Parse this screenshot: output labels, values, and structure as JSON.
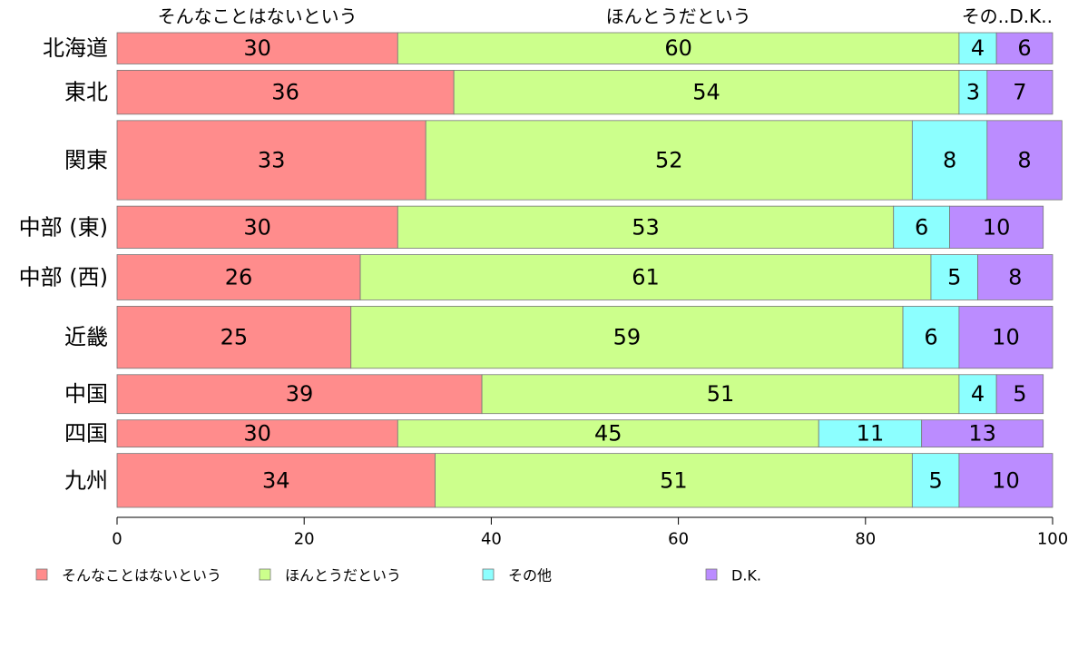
{
  "chart_data": {
    "type": "bar",
    "orientation": "horizontal",
    "stacked": true,
    "percent": true,
    "categories": [
      "北海道",
      "東北",
      "関東",
      "中部 (東)",
      "中部 (西)",
      "近畿",
      "中国",
      "四国",
      "九州"
    ],
    "series": [
      {
        "name": "そんなことはないという",
        "color": "#ff8c8c",
        "values": [
          30,
          36,
          33,
          30,
          26,
          25,
          39,
          30,
          34
        ]
      },
      {
        "name": "ほんとうだという",
        "color": "#ccff8c",
        "values": [
          60,
          54,
          52,
          53,
          61,
          59,
          51,
          45,
          51
        ]
      },
      {
        "name": "その他",
        "color": "#8cffff",
        "values": [
          4,
          3,
          8,
          6,
          5,
          6,
          4,
          11,
          5
        ]
      },
      {
        "name": "D.K.",
        "color": "#bb8cff",
        "values": [
          6,
          7,
          8,
          10,
          8,
          10,
          5,
          13,
          10
        ]
      }
    ],
    "top_labels": [
      "そんなことはないという",
      "ほんとうだという",
      "その..D.K.."
    ],
    "category_weights": [
      0.69,
      0.97,
      1.75,
      0.93,
      1.0,
      1.37,
      0.86,
      0.6,
      1.19
    ],
    "xlim": [
      0,
      100
    ],
    "xticks": [
      0,
      20,
      40,
      60,
      80,
      100
    ],
    "legend_position": "bottom"
  }
}
